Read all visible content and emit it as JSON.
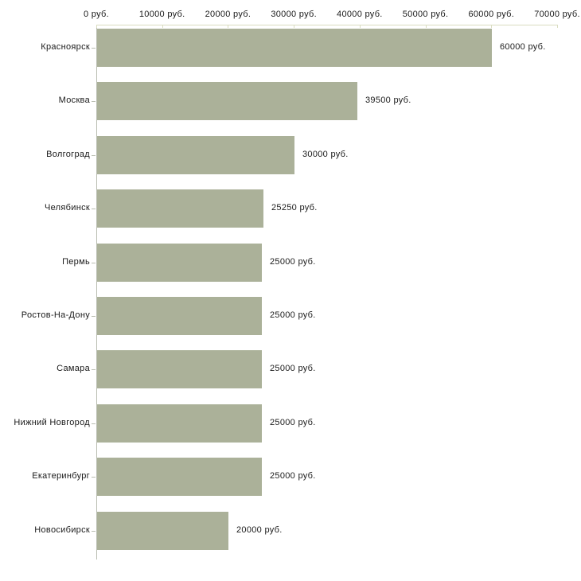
{
  "chart_data": {
    "type": "bar",
    "orientation": "horizontal",
    "title": "",
    "xlabel": "",
    "ylabel": "",
    "unit": "руб.",
    "categories": [
      "Красноярск",
      "Москва",
      "Волгоград",
      "Челябинск",
      "Пермь",
      "Ростов-На-Дону",
      "Самара",
      "Нижний Новгород",
      "Екатеринбург",
      "Новосибирск"
    ],
    "values": [
      60000,
      39500,
      30000,
      25250,
      25000,
      25000,
      25000,
      25000,
      25000,
      20000
    ],
    "value_labels": [
      "60000 руб.",
      "39500 руб.",
      "30000 руб.",
      "25250 руб.",
      "25000 руб.",
      "25000 руб.",
      "25000 руб.",
      "25000 руб.",
      "25000 руб.",
      "20000 руб."
    ],
    "x_ticks": [
      0,
      10000,
      20000,
      30000,
      40000,
      50000,
      60000,
      70000
    ],
    "x_tick_labels": [
      "0 руб.",
      "10000 руб.",
      "20000 руб.",
      "30000 руб.",
      "40000 руб.",
      "50000 руб.",
      "60000 руб.",
      "70000 руб."
    ],
    "xlim": [
      0,
      70000
    ],
    "grid": false,
    "legend": false,
    "colors": {
      "bar_fill": "#abb199",
      "axis_line": "#b9bdb1",
      "tick_mark": "#d9dcc0",
      "text": "#1a1a1a",
      "background": "#ffffff"
    }
  }
}
